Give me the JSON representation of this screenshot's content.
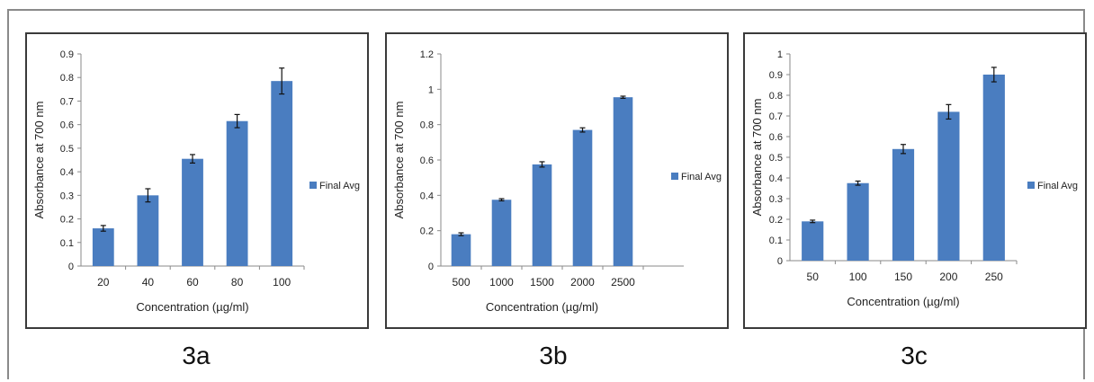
{
  "colors": {
    "bar": "#4a7dc0",
    "axis": "#8a8a8a",
    "text": "#222222"
  },
  "chart_data": [
    {
      "type": "bar",
      "caption": "3a",
      "categories": [
        "20",
        "40",
        "60",
        "80",
        "100"
      ],
      "series": [
        {
          "name": "Final Avg",
          "values": [
            0.16,
            0.3,
            0.455,
            0.615,
            0.785
          ],
          "errors": [
            0.012,
            0.028,
            0.018,
            0.028,
            0.055
          ]
        }
      ],
      "ylim": [
        0,
        0.9
      ],
      "yticks": [
        "0",
        "0.1",
        "0.2",
        "0.3",
        "0.4",
        "0.5",
        "0.6",
        "0.7",
        "0.8",
        "0.9"
      ],
      "xlabel": "Concentration (µg/ml)",
      "ylabel": "Absorbance at 700 nm",
      "grid": false,
      "legend": "right"
    },
    {
      "type": "bar",
      "caption": "3b",
      "categories": [
        "500",
        "1000",
        "1500",
        "2000",
        "2500"
      ],
      "series": [
        {
          "name": "Final Avg",
          "values": [
            0.18,
            0.375,
            0.575,
            0.77,
            0.955
          ],
          "errors": [
            0.008,
            0.006,
            0.015,
            0.012,
            0.006
          ]
        }
      ],
      "ylim": [
        0,
        1.2
      ],
      "yticks": [
        "0",
        "0.2",
        "0.4",
        "0.6",
        "0.8",
        "1",
        "1.2"
      ],
      "xlabel": "Concentration (µg/ml)",
      "ylabel": "Absorbance at 700 nm",
      "grid": false,
      "legend": "right"
    },
    {
      "type": "bar",
      "caption": "3c",
      "categories": [
        "50",
        "100",
        "150",
        "200",
        "250"
      ],
      "series": [
        {
          "name": "Final Avg",
          "values": [
            0.19,
            0.375,
            0.54,
            0.72,
            0.9
          ],
          "errors": [
            0.006,
            0.01,
            0.022,
            0.035,
            0.035
          ]
        }
      ],
      "ylim": [
        0,
        1
      ],
      "yticks": [
        "0",
        "0.1",
        "0.2",
        "0.3",
        "0.4",
        "0.5",
        "0.6",
        "0.7",
        "0.8",
        "0.9",
        "1"
      ],
      "xlabel": "Concentration (µg/ml)",
      "ylabel": "Absorbance at 700 nm",
      "grid": false,
      "legend": "right"
    }
  ]
}
